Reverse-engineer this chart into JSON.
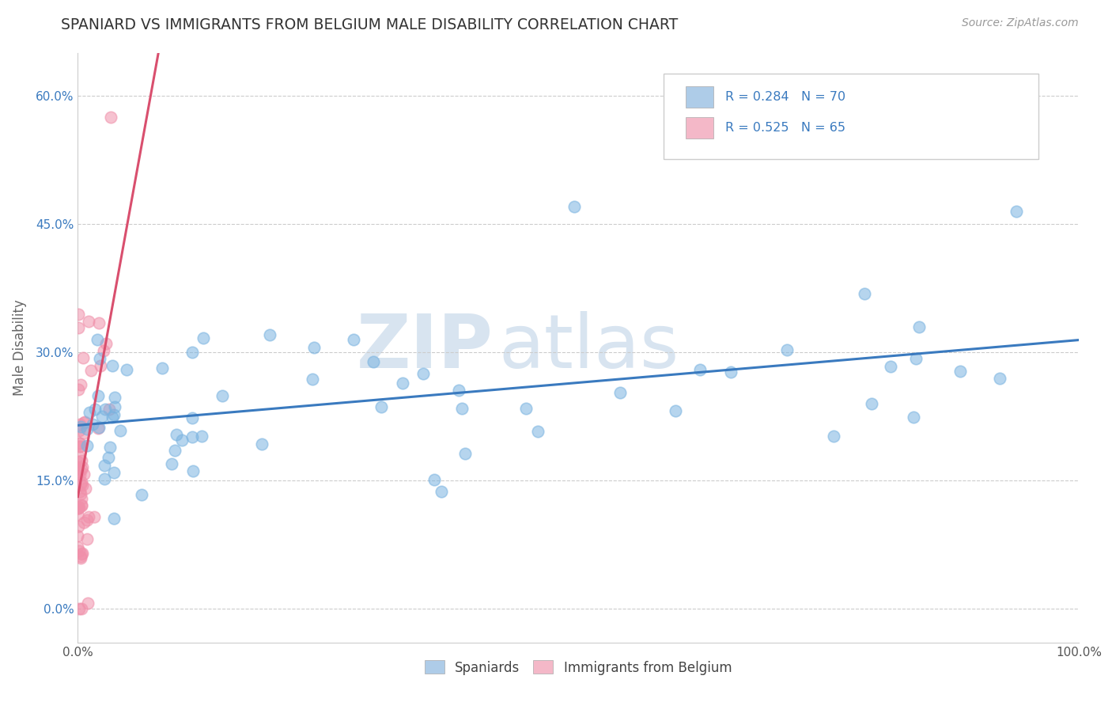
{
  "title": "SPANIARD VS IMMIGRANTS FROM BELGIUM MALE DISABILITY CORRELATION CHART",
  "source": "Source: ZipAtlas.com",
  "ylabel_label": "Male Disability",
  "watermark": "ZIPatlas",
  "blue_color": "#7ab3e0",
  "pink_color": "#f090aa",
  "blue_fill": "#aecce8",
  "pink_fill": "#f4b8c8",
  "xlim": [
    0.0,
    1.0
  ],
  "ylim": [
    -0.04,
    0.65
  ],
  "grid_color": "#cccccc",
  "background_color": "#ffffff",
  "title_color": "#333333",
  "watermark_color": "#d8e4f0",
  "blue_line_color": "#3a7abf",
  "pink_line_color": "#d94f6e",
  "R_spaniards": 0.284,
  "N_spaniards": 70,
  "R_belgium": 0.525,
  "N_belgium": 65,
  "ytick_vals": [
    0.0,
    0.15,
    0.3,
    0.45,
    0.6
  ],
  "ytick_labels": [
    "0.0%",
    "15.0%",
    "30.0%",
    "45.0%",
    "60.0%"
  ],
  "xtick_vals": [
    0.0,
    1.0
  ],
  "xtick_labels": [
    "0.0%",
    "100.0%"
  ],
  "legend_label_blue": "R = 0.284   N = 70",
  "legend_label_pink": "R = 0.525   N = 65",
  "bottom_legend_1": "Spaniards",
  "bottom_legend_2": "Immigrants from Belgium"
}
